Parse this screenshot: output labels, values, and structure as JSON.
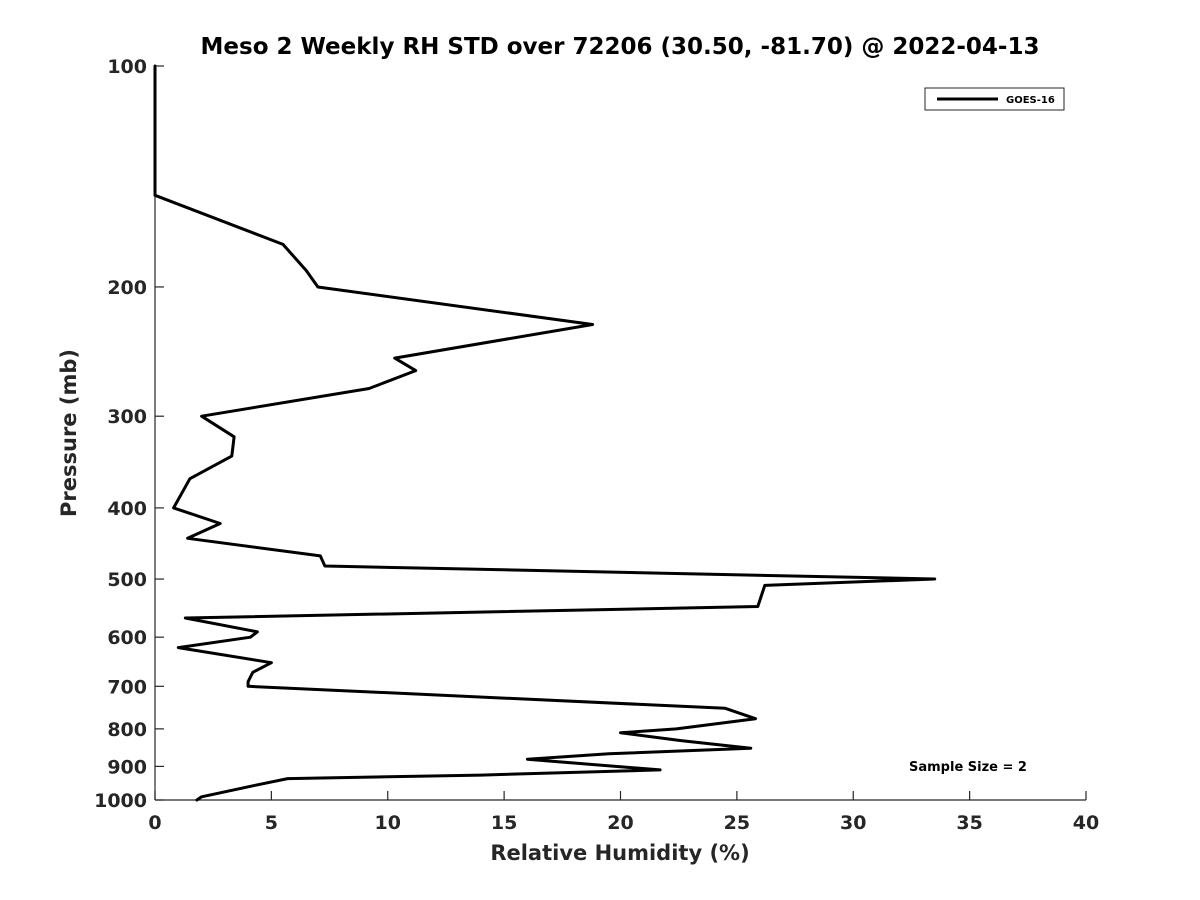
{
  "chart_data": {
    "type": "line",
    "title": "Meso 2 Weekly RH STD over 72206 (30.50, -81.70) @ 2022-04-13",
    "xlabel": "Relative Humidity (%)",
    "ylabel": "Pressure (mb)",
    "xlim": [
      0,
      40
    ],
    "ylim": [
      100,
      1000
    ],
    "y_scale": "log",
    "y_reversed": true,
    "xticks": [
      "0",
      "5",
      "10",
      "15",
      "20",
      "25",
      "30",
      "35",
      "40"
    ],
    "yticks": [
      "100",
      "200",
      "300",
      "400",
      "500",
      "600",
      "700",
      "800",
      "900",
      "1000"
    ],
    "grid": false,
    "legend_position": "top-right",
    "series": [
      {
        "name": "GOES-16",
        "color": "#000000",
        "points": [
          [
            0.0,
            100
          ],
          [
            0.0,
            150
          ],
          [
            5.5,
            175
          ],
          [
            6.5,
            190
          ],
          [
            7.0,
            200
          ],
          [
            18.8,
            225
          ],
          [
            10.3,
            250
          ],
          [
            11.2,
            260
          ],
          [
            9.2,
            275
          ],
          [
            2.0,
            300
          ],
          [
            3.4,
            320
          ],
          [
            3.3,
            340
          ],
          [
            1.5,
            365
          ],
          [
            0.8,
            400
          ],
          [
            2.8,
            420
          ],
          [
            1.4,
            440
          ],
          [
            7.1,
            465
          ],
          [
            7.3,
            480
          ],
          [
            33.5,
            500
          ],
          [
            26.2,
            510
          ],
          [
            25.9,
            545
          ],
          [
            1.3,
            565
          ],
          [
            4.4,
            590
          ],
          [
            4.1,
            600
          ],
          [
            1.0,
            620
          ],
          [
            5.0,
            650
          ],
          [
            4.2,
            670
          ],
          [
            4.0,
            690
          ],
          [
            4.0,
            700
          ],
          [
            24.5,
            750
          ],
          [
            25.8,
            775
          ],
          [
            22.4,
            800
          ],
          [
            20.0,
            810
          ],
          [
            22.6,
            830
          ],
          [
            25.6,
            850
          ],
          [
            19.5,
            865
          ],
          [
            16.0,
            880
          ],
          [
            21.7,
            910
          ],
          [
            14.0,
            925
          ],
          [
            5.7,
            935
          ],
          [
            4.3,
            955
          ],
          [
            2.0,
            990
          ],
          [
            1.8,
            1000
          ]
        ]
      }
    ],
    "annotations": [
      "Sample Size = 2"
    ]
  }
}
